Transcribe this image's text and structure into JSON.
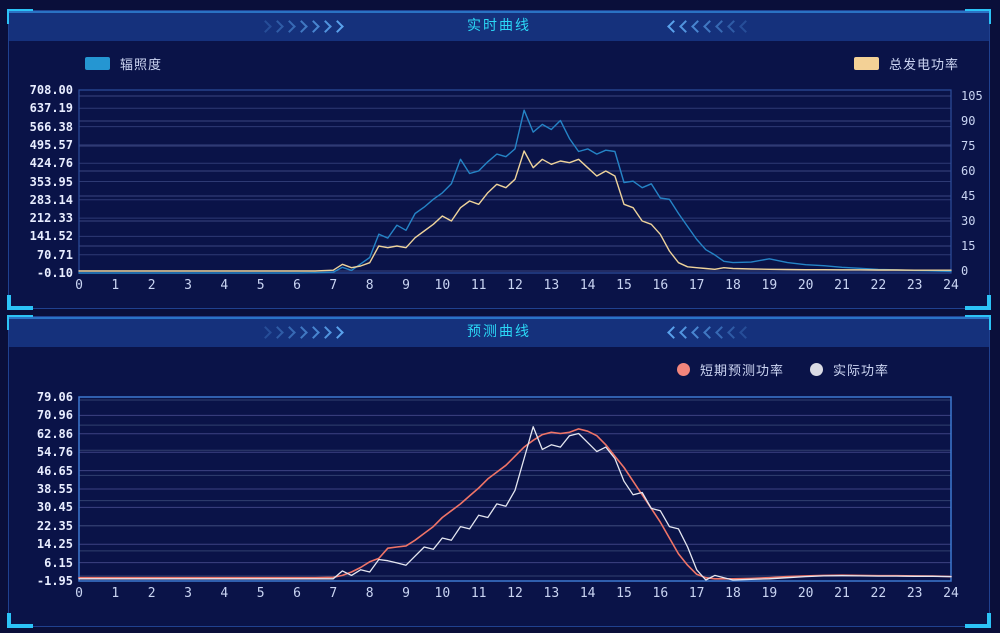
{
  "page": {
    "background": "#0a0f3a",
    "accent": "#2cc3f7"
  },
  "chart_data": [
    {
      "type": "line",
      "title": "实时曲线",
      "legend": [
        {
          "label": "辐照度",
          "color": "#2596d2",
          "shape": "square"
        },
        {
          "label": "总发电功率",
          "color": "#f3d196",
          "shape": "square"
        }
      ],
      "left_ticks": [
        "708.00",
        "637.19",
        "566.38",
        "495.57",
        "424.76",
        "353.95",
        "283.14",
        "212.33",
        "141.52",
        "70.71",
        "-0.10"
      ],
      "right_ticks": [
        "105",
        "90",
        "75",
        "60",
        "45",
        "30",
        "15",
        "0"
      ],
      "x_ticks": [
        "0",
        "1",
        "2",
        "3",
        "4",
        "5",
        "6",
        "7",
        "8",
        "9",
        "10",
        "11",
        "12",
        "13",
        "14",
        "15",
        "16",
        "17",
        "18",
        "19",
        "20",
        "21",
        "22",
        "23",
        "24"
      ],
      "left_range": [
        -0.1,
        708.0
      ],
      "right_range": [
        0,
        105
      ],
      "x_range": [
        0,
        24
      ],
      "grid_color": "#2e3a74",
      "grid2_color": "#3a4680",
      "border_color": "#2d4d9c",
      "series": [
        {
          "name": "辐照度",
          "axis": "left",
          "color": "#2584c6",
          "width": 1.4,
          "x": [
            0,
            1,
            2,
            3,
            4,
            5,
            6,
            6.5,
            7,
            7.25,
            7.5,
            7.75,
            8,
            8.25,
            8.5,
            8.75,
            9,
            9.25,
            9.5,
            9.75,
            10,
            10.25,
            10.5,
            10.75,
            11,
            11.25,
            11.5,
            11.75,
            12,
            12.25,
            12.5,
            12.75,
            13,
            13.25,
            13.5,
            13.75,
            14,
            14.25,
            14.5,
            14.75,
            15,
            15.25,
            15.5,
            15.75,
            16,
            16.25,
            16.5,
            16.75,
            17,
            17.25,
            17.5,
            17.75,
            18,
            18.5,
            19,
            19.5,
            20,
            20.5,
            21,
            21.5,
            22,
            22.5,
            23,
            23.5,
            24
          ],
          "values": [
            0,
            0,
            0,
            0,
            0,
            0,
            0,
            1,
            3,
            22,
            10,
            35,
            60,
            150,
            135,
            185,
            165,
            230,
            255,
            285,
            310,
            345,
            440,
            385,
            395,
            430,
            460,
            450,
            480,
            630,
            545,
            575,
            555,
            590,
            520,
            470,
            480,
            460,
            475,
            470,
            350,
            355,
            330,
            345,
            290,
            285,
            230,
            180,
            130,
            90,
            70,
            45,
            40,
            42,
            55,
            40,
            32,
            28,
            22,
            18,
            14,
            12,
            10,
            8,
            6
          ]
        },
        {
          "name": "总发电功率",
          "axis": "right",
          "color": "#eed39b",
          "width": 1.4,
          "x": [
            0,
            1,
            2,
            3,
            4,
            5,
            6,
            6.5,
            7,
            7.25,
            7.5,
            7.75,
            8,
            8.25,
            8.5,
            8.75,
            9,
            9.25,
            9.5,
            9.75,
            10,
            10.25,
            10.5,
            10.75,
            11,
            11.25,
            11.5,
            11.75,
            12,
            12.25,
            12.5,
            12.75,
            13,
            13.25,
            13.5,
            13.75,
            14,
            14.25,
            14.5,
            14.75,
            15,
            15.25,
            15.5,
            15.75,
            16,
            16.25,
            16.5,
            16.75,
            17,
            17.25,
            17.5,
            17.75,
            18,
            18.5,
            19,
            19.5,
            20,
            20.5,
            21,
            21.5,
            22,
            22.5,
            23,
            23.5,
            24
          ],
          "values": [
            0,
            0,
            0,
            0,
            0,
            0,
            0,
            0,
            0.5,
            4,
            2,
            3,
            5,
            15,
            14,
            15,
            14,
            20,
            24,
            28,
            33,
            30,
            38,
            42,
            40,
            47,
            52,
            50,
            55,
            72,
            62,
            67,
            64,
            66,
            65,
            67,
            62,
            57,
            60,
            57,
            40,
            38,
            30,
            28,
            22,
            12,
            5,
            2.5,
            2,
            1.5,
            1,
            2,
            1.5,
            1.2,
            1,
            0.9,
            0.8,
            0.8,
            0.7,
            0.7,
            0.6,
            0.6,
            0.5,
            0.5,
            0.5
          ]
        }
      ]
    },
    {
      "type": "line",
      "title": "预测曲线",
      "legend": [
        {
          "label": "短期预测功率",
          "color": "#f2857c",
          "shape": "dot"
        },
        {
          "label": "实际功率",
          "color": "#dadbe4",
          "shape": "dot"
        }
      ],
      "left_ticks": [
        "79.06",
        "70.96",
        "62.86",
        "54.76",
        "46.65",
        "38.55",
        "30.45",
        "22.35",
        "14.25",
        "6.15",
        "-1.95"
      ],
      "right_ticks": null,
      "x_ticks": [
        "0",
        "1",
        "2",
        "3",
        "4",
        "5",
        "6",
        "7",
        "8",
        "9",
        "10",
        "11",
        "12",
        "13",
        "14",
        "15",
        "16",
        "17",
        "18",
        "19",
        "20",
        "21",
        "22",
        "23",
        "24"
      ],
      "left_range": [
        -1.95,
        79.06
      ],
      "right_range": null,
      "x_range": [
        0,
        24
      ],
      "grid_color": "#3c4282",
      "grid2_color": "#32406f",
      "border_color": "#3d79cf",
      "series": [
        {
          "name": "短期预测功率",
          "axis": "left",
          "color": "#ef7467",
          "width": 1.6,
          "x": [
            0,
            1,
            2,
            3,
            4,
            5,
            6,
            6.5,
            7,
            7.25,
            7.5,
            7.75,
            8,
            8.25,
            8.5,
            8.75,
            9,
            9.25,
            9.5,
            9.75,
            10,
            10.25,
            10.5,
            10.75,
            11,
            11.25,
            11.5,
            11.75,
            12,
            12.25,
            12.5,
            12.75,
            13,
            13.25,
            13.5,
            13.75,
            14,
            14.25,
            14.5,
            14.75,
            15,
            15.25,
            15.5,
            15.75,
            16,
            16.25,
            16.5,
            16.75,
            17,
            17.25,
            17.5,
            17.75,
            18,
            18.5,
            19,
            19.5,
            20,
            20.5,
            21,
            21.5,
            22,
            22.5,
            23,
            23.5,
            24
          ],
          "values": [
            -0.5,
            -0.5,
            -0.5,
            -0.5,
            -0.5,
            -0.5,
            -0.5,
            -0.5,
            -0.3,
            0.5,
            2,
            4,
            6.5,
            8,
            12.5,
            13,
            13.5,
            16,
            19,
            22,
            26,
            29,
            32,
            35.5,
            39,
            43,
            46,
            49,
            53,
            57,
            60,
            62.5,
            63.5,
            63,
            63.5,
            65,
            64,
            62,
            58,
            53,
            48,
            42,
            36,
            30,
            24,
            17,
            10,
            5,
            1,
            -0.5,
            -1,
            -1,
            -1,
            -0.8,
            -0.5,
            0,
            0.3,
            0.5,
            0.6,
            0.5,
            0.4,
            0.4,
            0.3,
            0.2,
            0
          ]
        },
        {
          "name": "实际功率",
          "axis": "left",
          "color": "#e4e6f0",
          "width": 1.3,
          "x": [
            0,
            1,
            2,
            3,
            4,
            5,
            6,
            6.5,
            7,
            7.25,
            7.5,
            7.75,
            8,
            8.25,
            8.5,
            8.75,
            9,
            9.25,
            9.5,
            9.75,
            10,
            10.25,
            10.5,
            10.75,
            11,
            11.25,
            11.5,
            11.75,
            12,
            12.25,
            12.5,
            12.75,
            13,
            13.25,
            13.5,
            13.75,
            14,
            14.25,
            14.5,
            14.75,
            15,
            15.25,
            15.5,
            15.75,
            16,
            16.25,
            16.5,
            16.75,
            17,
            17.25,
            17.5,
            17.75,
            18,
            18.5,
            19,
            19.5,
            20,
            20.5,
            21,
            21.5,
            22,
            22.5,
            23,
            23.5,
            24
          ],
          "values": [
            -1,
            -1,
            -1,
            -1,
            -1,
            -1,
            -1,
            -1,
            -1,
            2.5,
            0.5,
            3,
            2,
            7.5,
            7,
            6,
            5,
            9,
            13,
            12,
            17,
            16,
            22,
            21,
            27,
            26,
            32,
            31,
            38,
            52,
            66,
            56,
            58,
            57,
            62,
            63,
            59,
            55,
            57,
            52,
            42,
            36,
            37,
            30,
            29,
            22,
            21,
            13,
            3,
            -1.5,
            0.5,
            -0.5,
            -1.5,
            -1.2,
            -1,
            -0.5,
            0,
            0.3,
            0.4,
            0.3,
            0.2,
            0.2,
            0.1,
            0.1,
            0
          ]
        }
      ]
    }
  ],
  "decor": {
    "chevrons_forward_icon": "css-chevrons-right",
    "chevrons_back_icon": "css-chevrons-left"
  }
}
